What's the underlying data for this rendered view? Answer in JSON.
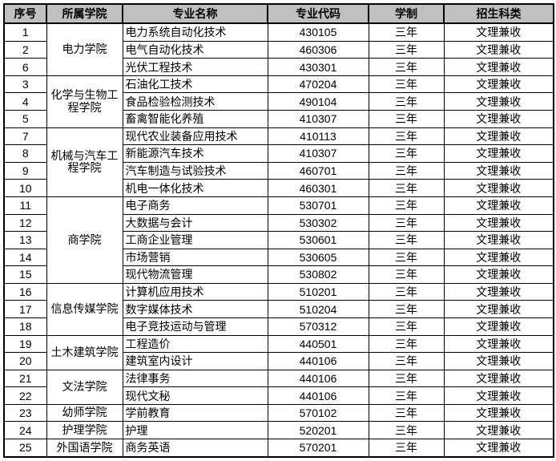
{
  "colors": {
    "header_bg": "#c0c0c0",
    "border": "#000000",
    "page_bg": "#ffffff"
  },
  "table": {
    "headers": [
      {
        "key": "no",
        "label": "序号"
      },
      {
        "key": "college",
        "label": "所属学院"
      },
      {
        "key": "major",
        "label": "专业名称"
      },
      {
        "key": "code",
        "label": "专业代码"
      },
      {
        "key": "duration",
        "label": "学制"
      },
      {
        "key": "category",
        "label": "招生科类"
      }
    ],
    "rows": [
      {
        "no": "1",
        "college": "电力学院",
        "college_rowspan": 3,
        "major": "电力系统自动化技术",
        "code": "430105",
        "duration": "三年",
        "category": "文理兼收"
      },
      {
        "no": "2",
        "major": "电气自动化技术",
        "code": "460306",
        "duration": "三年",
        "category": "文理兼收"
      },
      {
        "no": "6",
        "major": "光伏工程技术",
        "code": "430301",
        "duration": "三年",
        "category": "文理兼收"
      },
      {
        "no": "3",
        "college": "化学与生物工程学院",
        "college_rowspan": 3,
        "major": "石油化工技术",
        "code": "470204",
        "duration": "三年",
        "category": "文理兼收"
      },
      {
        "no": "4",
        "major": "食品检验检测技术",
        "code": "490104",
        "duration": "三年",
        "category": "文理兼收"
      },
      {
        "no": "5",
        "major": "畜禽智能化养殖",
        "code": "410307",
        "duration": "三年",
        "category": "文理兼收"
      },
      {
        "no": "7",
        "college": "机械与汽车工程学院",
        "college_rowspan": 4,
        "major": "现代农业装备应用技术",
        "code": "410113",
        "duration": "三年",
        "category": "文理兼收"
      },
      {
        "no": "8",
        "major": "新能源汽车技术",
        "code": "410307",
        "duration": "三年",
        "category": "文理兼收"
      },
      {
        "no": "9",
        "major": "汽车制造与试验技术",
        "code": "460701",
        "duration": "三年",
        "category": "文理兼收"
      },
      {
        "no": "10",
        "major": "机电一体化技术",
        "code": "460301",
        "duration": "三年",
        "category": "文理兼收"
      },
      {
        "no": "11",
        "college": "商学院",
        "college_rowspan": 5,
        "major": "电子商务",
        "code": "530701",
        "duration": "三年",
        "category": "文理兼收"
      },
      {
        "no": "12",
        "major": "大数据与会计",
        "code": "530302",
        "duration": "三年",
        "category": "文理兼收"
      },
      {
        "no": "13",
        "major": "工商企业管理",
        "code": "530601",
        "duration": "三年",
        "category": "文理兼收"
      },
      {
        "no": "14",
        "major": "市场营销",
        "code": "530605",
        "duration": "三年",
        "category": "文理兼收"
      },
      {
        "no": "15",
        "major": "现代物流管理",
        "code": "530802",
        "duration": "三年",
        "category": "文理兼收"
      },
      {
        "no": "16",
        "college": "信息传媒学院",
        "college_rowspan": 3,
        "major": "计算机应用技术",
        "code": "510201",
        "duration": "三年",
        "category": "文理兼收"
      },
      {
        "no": "17",
        "major": "数字媒体技术",
        "code": "510204",
        "duration": "三年",
        "category": "文理兼收"
      },
      {
        "no": "18",
        "major": "电子竞技运动与管理",
        "code": "570312",
        "duration": "三年",
        "category": "文理兼收"
      },
      {
        "no": "19",
        "college": "土木建筑学院",
        "college_rowspan": 2,
        "major": "工程造价",
        "code": "440501",
        "duration": "三年",
        "category": "文理兼收"
      },
      {
        "no": "20",
        "major": "建筑室内设计",
        "code": "440106",
        "duration": "三年",
        "category": "文理兼收"
      },
      {
        "no": "21",
        "college": "文法学院",
        "college_rowspan": 2,
        "major": "法律事务",
        "code": "440106",
        "duration": "三年",
        "category": "文理兼收"
      },
      {
        "no": "22",
        "major": "现代文秘",
        "code": "440106",
        "duration": "三年",
        "category": "文理兼收"
      },
      {
        "no": "23",
        "college": "幼师学院",
        "college_rowspan": 1,
        "major": "学前教育",
        "code": "570102",
        "duration": "三年",
        "category": "文理兼收"
      },
      {
        "no": "24",
        "college": "护理学院",
        "college_rowspan": 1,
        "major": "护理",
        "code": "520201",
        "duration": "三年",
        "category": "文理兼收"
      },
      {
        "no": "25",
        "college": "外国语学院",
        "college_rowspan": 1,
        "major": "商务英语",
        "code": "570201",
        "duration": "三年",
        "category": "文理兼收"
      }
    ]
  }
}
